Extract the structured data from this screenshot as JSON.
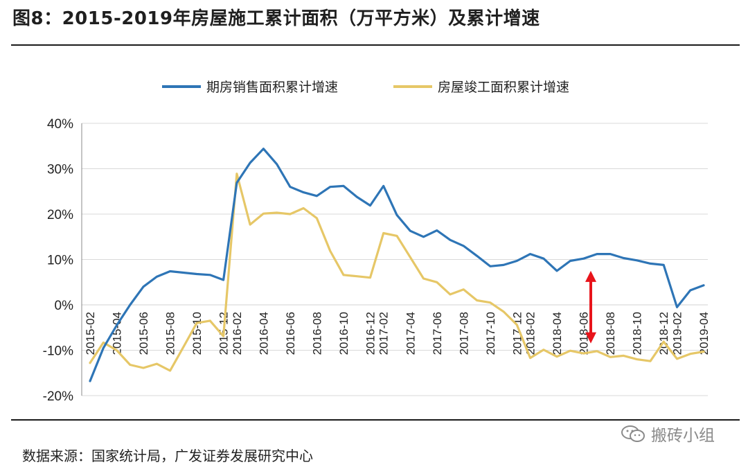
{
  "figure": {
    "title": "图8：2015-2019年房屋施工累计面积（万平方米）及累计增速",
    "source": "数据来源：国家统计局，广发证券发展研究中心",
    "watermark": "搬砖小组"
  },
  "colors": {
    "series1": "#2e75b6",
    "series2": "#e6c767",
    "arrow": "#e8141b",
    "axis": "#888888",
    "grid": "#d9d9d9"
  },
  "chart_data": {
    "type": "line",
    "title": "",
    "xlabel": "",
    "ylabel": "",
    "ylim": [
      -20,
      40
    ],
    "yticks": [
      40,
      30,
      20,
      10,
      0,
      -10,
      -20
    ],
    "ytick_labels": [
      "40%",
      "30%",
      "20%",
      "10%",
      "0%",
      "-10%",
      "-20%"
    ],
    "xtick_labels": [
      "2015-02",
      "2015-04",
      "2015-06",
      "2015-08",
      "2015-10",
      "2015-12",
      "2016-02",
      "2016-04",
      "2016-06",
      "2016-08",
      "2016-10",
      "2016-12",
      "2017-02",
      "2017-04",
      "2017-06",
      "2017-08",
      "2017-10",
      "2017-12",
      "2018-02",
      "2018-04",
      "2018-06",
      "2018-08",
      "2018-10",
      "2018-12",
      "2019-02",
      "2019-04"
    ],
    "legend_position": "top",
    "x": [
      "2015-02",
      "2015-03",
      "2015-04",
      "2015-05",
      "2015-06",
      "2015-07",
      "2015-08",
      "2015-09",
      "2015-10",
      "2015-11",
      "2015-12",
      "2016-02",
      "2016-03",
      "2016-04",
      "2016-05",
      "2016-06",
      "2016-07",
      "2016-08",
      "2016-09",
      "2016-10",
      "2016-11",
      "2016-12",
      "2017-02",
      "2017-03",
      "2017-04",
      "2017-05",
      "2017-06",
      "2017-07",
      "2017-08",
      "2017-09",
      "2017-10",
      "2017-11",
      "2017-12",
      "2018-02",
      "2018-03",
      "2018-04",
      "2018-05",
      "2018-06",
      "2018-07",
      "2018-08",
      "2018-09",
      "2018-10",
      "2018-11",
      "2018-12",
      "2019-02",
      "2019-03",
      "2019-04"
    ],
    "series": [
      {
        "name": "期房销售面积累计增速",
        "values": [
          -16.8,
          -9.5,
          -4.5,
          0,
          4,
          6.2,
          7.4,
          7.1,
          6.8,
          6.6,
          5.5,
          26.9,
          31.3,
          34.4,
          31,
          26,
          24.8,
          24,
          26,
          26.2,
          23.8,
          21.9,
          26.2,
          19.8,
          16.3,
          15,
          16.4,
          14.3,
          13,
          10.8,
          8.5,
          8.8,
          9.7,
          11.2,
          10.2,
          7.5,
          9.7,
          10.2,
          11.2,
          11.2,
          10.3,
          9.8,
          9.1,
          8.8,
          -0.5,
          3.2,
          4.3
        ]
      },
      {
        "name": "房屋竣工面积累计增速",
        "values": [
          -12.8,
          -8.3,
          -10,
          -13.2,
          -13.9,
          -13,
          -14.5,
          -9.3,
          -4,
          -3.5,
          -6.9,
          28.9,
          17.7,
          20.1,
          20.3,
          20,
          21.3,
          19.1,
          11.9,
          6.6,
          6.3,
          6,
          15.8,
          15.2,
          10.5,
          5.8,
          5,
          2.3,
          3.4,
          1,
          0.5,
          -1.5,
          -4.4,
          -11.7,
          -9.9,
          -11.4,
          -10.1,
          -10.7,
          -10.2,
          -11.5,
          -11.2,
          -12,
          -12.4,
          -8.1,
          -11.9,
          -10.8,
          -10.3
        ]
      }
    ],
    "annotation": "double-headed red arrow spanning about -8% to +7% near 2018-07"
  }
}
